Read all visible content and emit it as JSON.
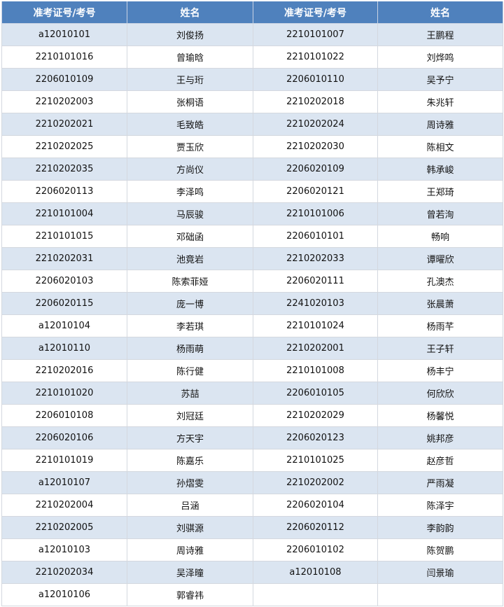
{
  "table": {
    "headers": [
      "准考证号/考号",
      "姓名",
      "准考证号/考号",
      "姓名"
    ],
    "rows": [
      [
        "a12010101",
        "刘俊扬",
        "2210101007",
        "王鹏程"
      ],
      [
        "2210101016",
        "曾瑜晗",
        "2210101022",
        "刘烨鸣"
      ],
      [
        "2206010109",
        "王与珩",
        "2206010110",
        "吴予宁"
      ],
      [
        "2210202003",
        "张桐语",
        "2210202018",
        "朱兆轩"
      ],
      [
        "2210202021",
        "毛致皓",
        "2210202024",
        "周诗雅"
      ],
      [
        "2210202025",
        "贾玉欣",
        "2210202030",
        "陈相文"
      ],
      [
        "2210202035",
        "方尚仪",
        "2206020109",
        "韩承峻"
      ],
      [
        "2206020113",
        "李泽鸣",
        "2206020121",
        "王郑琦"
      ],
      [
        "2210101004",
        "马辰骏",
        "2210101006",
        "曾若洵"
      ],
      [
        "2210101015",
        "邓础函",
        "2206010101",
        "畅响"
      ],
      [
        "2210202031",
        "池竟岩",
        "2210202033",
        "谭曜欣"
      ],
      [
        "2206020103",
        "陈索菲娅",
        "2206020111",
        "孔澳杰"
      ],
      [
        "2206020115",
        "庞一博",
        "2241020103",
        "张晨萧"
      ],
      [
        "a12010104",
        "李若琪",
        "2210101024",
        "杨雨芊"
      ],
      [
        "a12010110",
        "杨雨萌",
        "2210202001",
        "王子轩"
      ],
      [
        "2210202016",
        "陈行健",
        "2210101008",
        "杨丰宁"
      ],
      [
        "2210101020",
        "苏喆",
        "2206010105",
        "何欣欣"
      ],
      [
        "2206010108",
        "刘冠廷",
        "2210202029",
        "杨馨悦"
      ],
      [
        "2206020106",
        "方天宇",
        "2206020123",
        "姚邦彦"
      ],
      [
        "2210101019",
        "陈嘉乐",
        "2210101025",
        "赵彦哲"
      ],
      [
        "a12010107",
        "孙熠雯",
        "2210202002",
        "严雨凝"
      ],
      [
        "2210202004",
        "吕涵",
        "2206020104",
        "陈泽宇"
      ],
      [
        "2210202005",
        "刘骐源",
        "2206020112",
        "李韵韵"
      ],
      [
        "a12010103",
        "周诗雅",
        "2206010102",
        "陈贺鹏"
      ],
      [
        "2210202034",
        "吴泽曈",
        "a12010108",
        "闫景瑜"
      ],
      [
        "a12010106",
        "郭睿祎",
        "",
        ""
      ]
    ]
  },
  "colors": {
    "header_bg": "#4f81bd",
    "alt_row_bg": "#dbe5f1"
  }
}
